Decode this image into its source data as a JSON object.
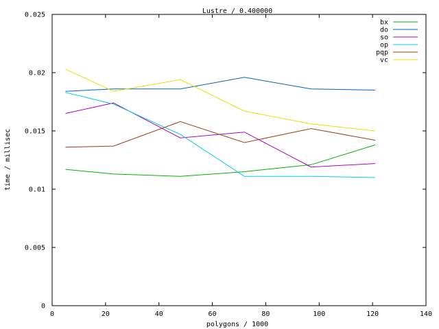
{
  "chart_data": {
    "type": "line",
    "title": "Lustre / 0.400000",
    "xlabel": "polygons / 1000",
    "ylabel": "time / millisec",
    "xlim": [
      0,
      140
    ],
    "ylim": [
      0,
      0.025
    ],
    "x_ticks": [
      0,
      20,
      40,
      60,
      80,
      100,
      120,
      140
    ],
    "x_tick_labels": [
      "0",
      "20",
      "40",
      "60",
      "80",
      "100",
      "120",
      "140"
    ],
    "y_ticks": [
      0,
      0.005,
      0.01,
      0.015,
      0.02,
      0.025
    ],
    "y_tick_labels": [
      "0",
      "0.005",
      "0.01",
      "0.015",
      "0.02",
      "0.025"
    ],
    "grid": false,
    "legend_position": "top-right",
    "x": [
      5,
      23,
      48,
      72,
      97,
      121
    ],
    "series": [
      {
        "name": "bx",
        "color": "#00b000",
        "values": [
          0.0117,
          0.0113,
          0.0111,
          0.0115,
          0.0121,
          0.0138
        ]
      },
      {
        "name": "do",
        "color": "#0060c8",
        "values": [
          0.0184,
          0.0186,
          0.0186,
          0.0196,
          0.0186,
          0.0185
        ]
      },
      {
        "name": "so",
        "color": "#b000c8",
        "values": [
          0.0165,
          0.0174,
          0.0144,
          0.0149,
          0.0119,
          0.0122
        ]
      },
      {
        "name": "op",
        "color": "#00d0e0",
        "values": [
          0.0183,
          0.0173,
          0.0147,
          0.0111,
          0.0111,
          0.011
        ]
      },
      {
        "name": "pqp",
        "color": "#a03c14",
        "values": [
          0.0136,
          0.0137,
          0.0158,
          0.014,
          0.0152,
          0.0142
        ]
      },
      {
        "name": "vc",
        "color": "#e8e000",
        "values": [
          0.0203,
          0.0184,
          0.0194,
          0.0167,
          0.0156,
          0.015
        ]
      }
    ]
  }
}
